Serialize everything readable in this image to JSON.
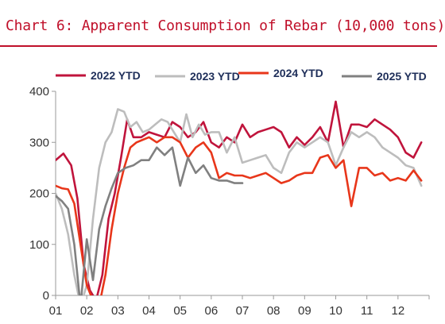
{
  "title": "Chart 6: Apparent Consumption of Rebar (10,000 tons)",
  "colors": {
    "title": "#c0102a",
    "axis": "#9a9a9a"
  },
  "chart_data": {
    "type": "line",
    "title": "Chart 6: Apparent Consumption of Rebar (10,000 tons)",
    "xlabel": "",
    "ylabel": "",
    "x_ticks": [
      "01",
      "02",
      "03",
      "04",
      "05",
      "06",
      "07",
      "08",
      "09",
      "10",
      "11",
      "12"
    ],
    "xlim": [
      1,
      13
    ],
    "ylim": [
      0,
      400
    ],
    "y_ticks": [
      0,
      100,
      200,
      300,
      400
    ],
    "grid": false,
    "legend_position": "top",
    "series": [
      {
        "name": "2022 YTD",
        "color": "#c0143c",
        "width": 2.6,
        "x": [
          1.0,
          1.25,
          1.5,
          1.7,
          1.9,
          2.1,
          2.3,
          2.5,
          2.7,
          2.9,
          3.1,
          3.3,
          3.5,
          3.75,
          4.0,
          4.25,
          4.5,
          4.75,
          5.0,
          5.25,
          5.5,
          5.75,
          6.0,
          6.25,
          6.5,
          6.75,
          7.0,
          7.25,
          7.5,
          7.75,
          8.0,
          8.25,
          8.5,
          8.75,
          9.0,
          9.25,
          9.5,
          9.75,
          10.0,
          10.25,
          10.5,
          10.75,
          11.0,
          11.25,
          11.5,
          11.75,
          12.0,
          12.25,
          12.5,
          12.75
        ],
        "y": [
          265,
          278,
          255,
          190,
          60,
          10,
          -10,
          40,
          150,
          200,
          270,
          345,
          310,
          310,
          320,
          315,
          310,
          340,
          330,
          310,
          320,
          340,
          300,
          290,
          310,
          300,
          335,
          310,
          320,
          325,
          330,
          320,
          290,
          310,
          295,
          310,
          330,
          300,
          380,
          290,
          335,
          335,
          330,
          345,
          335,
          325,
          310,
          280,
          270,
          300
        ]
      },
      {
        "name": "2023 YTD",
        "color": "#bdbdbd",
        "width": 2.6,
        "x": [
          1.0,
          1.2,
          1.4,
          1.6,
          1.8,
          2.0,
          2.2,
          2.4,
          2.6,
          2.8,
          3.0,
          3.2,
          3.4,
          3.6,
          3.8,
          4.0,
          4.2,
          4.4,
          4.6,
          4.8,
          5.0,
          5.2,
          5.4,
          5.6,
          5.8,
          6.0,
          6.25,
          6.5,
          6.75,
          7.0,
          7.25,
          7.5,
          7.75,
          8.0,
          8.25,
          8.5,
          8.75,
          9.0,
          9.25,
          9.5,
          9.75,
          10.0,
          10.25,
          10.5,
          10.75,
          11.0,
          11.25,
          11.5,
          11.75,
          12.0,
          12.25,
          12.5,
          12.75
        ],
        "y": [
          200,
          170,
          120,
          40,
          -20,
          20,
          150,
          250,
          300,
          320,
          365,
          360,
          330,
          340,
          320,
          325,
          335,
          345,
          340,
          320,
          300,
          355,
          310,
          335,
          315,
          320,
          320,
          280,
          310,
          260,
          265,
          270,
          275,
          250,
          240,
          280,
          300,
          290,
          300,
          310,
          300,
          255,
          290,
          320,
          310,
          320,
          310,
          290,
          280,
          270,
          255,
          250,
          215
        ]
      },
      {
        "name": "2024 YTD",
        "color": "#e8361a",
        "width": 2.6,
        "x": [
          1.0,
          1.2,
          1.4,
          1.6,
          1.8,
          2.0,
          2.2,
          2.4,
          2.6,
          2.8,
          3.0,
          3.2,
          3.4,
          3.6,
          3.8,
          4.0,
          4.25,
          4.5,
          4.75,
          5.0,
          5.25,
          5.5,
          5.75,
          6.0,
          6.25,
          6.5,
          6.75,
          7.0,
          7.25,
          7.5,
          7.75,
          8.0,
          8.25,
          8.5,
          8.75,
          9.0,
          9.25,
          9.5,
          9.75,
          10.0,
          10.25,
          10.5,
          10.75,
          11.0,
          11.25,
          11.5,
          11.75,
          12.0,
          12.25,
          12.5,
          12.75
        ],
        "y": [
          215,
          210,
          208,
          180,
          100,
          20,
          -10,
          -20,
          40,
          130,
          200,
          250,
          290,
          300,
          305,
          310,
          300,
          310,
          310,
          300,
          270,
          290,
          300,
          280,
          230,
          240,
          235,
          235,
          230,
          235,
          240,
          230,
          220,
          225,
          235,
          240,
          240,
          270,
          275,
          250,
          265,
          175,
          250,
          250,
          235,
          240,
          225,
          230,
          225,
          245,
          225
        ]
      },
      {
        "name": "2025 YTD",
        "color": "#808080",
        "width": 2.6,
        "x": [
          1.0,
          1.2,
          1.4,
          1.6,
          1.8,
          2.0,
          2.2,
          2.4,
          2.6,
          2.8,
          3.0,
          3.25,
          3.5,
          3.75,
          4.0,
          4.25,
          4.5,
          4.75,
          5.0,
          5.25,
          5.5,
          5.75,
          6.0,
          6.25,
          6.5,
          6.75,
          7.0
        ],
        "y": [
          195,
          185,
          170,
          100,
          -20,
          110,
          30,
          130,
          175,
          210,
          240,
          250,
          255,
          265,
          265,
          290,
          275,
          290,
          215,
          270,
          240,
          255,
          230,
          225,
          225,
          220,
          220
        ]
      }
    ]
  }
}
